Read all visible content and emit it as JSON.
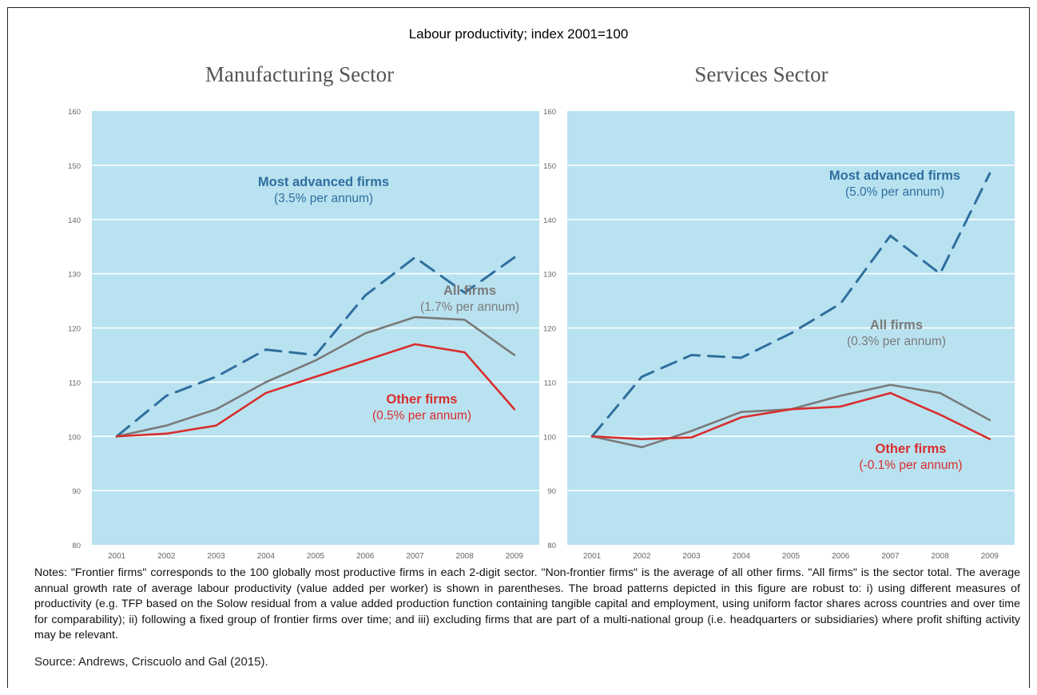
{
  "main_title": "Labour productivity; index 2001=100",
  "charts": [
    {
      "title": "Manufacturing Sector"
    },
    {
      "title": "Services Sector"
    }
  ],
  "notes": "Notes: \"Frontier firms\" corresponds to the 100 globally most productive firms in each 2-digit sector. \"Non-frontier firms\" is the average of all other firms. \"All firms\" is the sector total. The average annual growth rate of average labour productivity (value added per worker) is shown in parentheses. The broad patterns depicted in this figure are robust to: i) using different measures of productivity (e.g. TFP based on the Solow residual from a value added production function containing tangible capital and employment, using uniform factor shares across countries and over time for comparability); ii) following a fixed group of frontier firms over time; and iii) excluding firms that are part of a multi-national group (i.e. headquarters or subsidiaries) where profit shifting activity may be relevant.",
  "source": "Source: Andrews, Criscuolo and Gal (2015).",
  "colors": {
    "plot_bg": "#b9e2f0",
    "frontier": "#2f6f9f",
    "all": "#7a7a7a",
    "other": "#d92d2d",
    "grid": "#ffffff"
  },
  "chart_data": [
    {
      "type": "line",
      "title": "Manufacturing Sector",
      "x": [
        "2001",
        "2002",
        "2003",
        "2004",
        "2005",
        "2006",
        "2007",
        "2008",
        "2009"
      ],
      "ylim": [
        80,
        160
      ],
      "yticks": [
        80,
        90,
        100,
        110,
        120,
        130,
        140,
        150,
        160
      ],
      "grid": true,
      "series": [
        {
          "name": "Most advanced firms",
          "note": "(3.5% per annum)",
          "style": "dashed",
          "color": "#2f6f9f",
          "values": [
            100,
            107.5,
            111,
            116,
            115,
            126,
            133,
            126.5,
            133
          ]
        },
        {
          "name": "All firms",
          "note": "(1.7% per annum)",
          "style": "solid",
          "color": "#7a7a7a",
          "values": [
            100,
            102,
            105,
            110,
            114,
            119,
            122,
            121.5,
            115
          ]
        },
        {
          "name": "Other firms",
          "note": "(0.5% per annum)",
          "style": "solid",
          "color": "#d92d2d",
          "values": [
            100,
            100.5,
            102,
            108,
            111,
            114,
            117,
            115.5,
            105
          ]
        }
      ]
    },
    {
      "type": "line",
      "title": "Services Sector",
      "x": [
        "2001",
        "2002",
        "2003",
        "2004",
        "2005",
        "2006",
        "2007",
        "2008",
        "2009"
      ],
      "ylim": [
        80,
        160
      ],
      "yticks": [
        80,
        90,
        100,
        110,
        120,
        130,
        140,
        150,
        160
      ],
      "grid": true,
      "series": [
        {
          "name": "Most advanced firms",
          "note": "(5.0% per annum)",
          "style": "dashed",
          "color": "#2f6f9f",
          "values": [
            100,
            111,
            115,
            114.5,
            119,
            124.5,
            137,
            130,
            148.5
          ]
        },
        {
          "name": "All firms",
          "note": "(0.3% per annum)",
          "style": "solid",
          "color": "#7a7a7a",
          "values": [
            100,
            98,
            101,
            104.5,
            105,
            107.5,
            109.5,
            108,
            103
          ]
        },
        {
          "name": "Other firms",
          "note": "(-0.1% per annum)",
          "style": "solid",
          "color": "#d92d2d",
          "values": [
            100,
            99.5,
            99.8,
            103.5,
            105,
            105.5,
            108,
            104,
            99.5
          ]
        }
      ]
    }
  ]
}
